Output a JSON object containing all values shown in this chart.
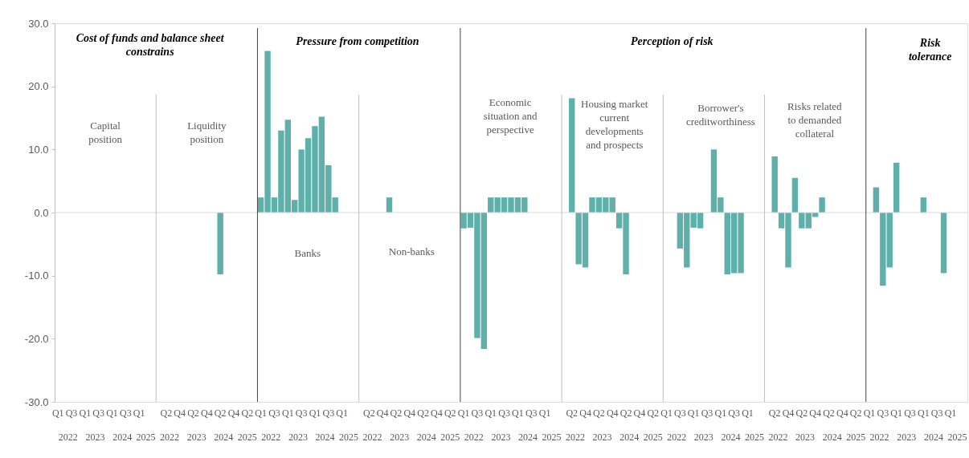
{
  "chart_data": {
    "type": "bar",
    "categories": [
      "Q1",
      null,
      "Q3",
      null,
      "Q1",
      null,
      "Q3",
      null,
      "Q1",
      null,
      "Q3",
      null,
      "Q1",
      null,
      null,
      null,
      "Q2",
      null,
      "Q4",
      null,
      "Q2",
      null,
      "Q4",
      null,
      "Q2",
      null,
      "Q4",
      null,
      "Q2",
      null,
      "Q1",
      null,
      "Q3",
      null,
      "Q1",
      null,
      "Q3",
      null,
      "Q1",
      null,
      "Q3",
      null,
      "Q1",
      null,
      null,
      null,
      "Q2",
      null,
      "Q4",
      null,
      "Q2",
      null,
      "Q4",
      null,
      "Q2",
      null,
      "Q4",
      null,
      "Q2",
      null,
      "Q1",
      null,
      "Q3",
      null,
      "Q1",
      null,
      "Q3",
      null,
      "Q1",
      null,
      "Q3",
      null,
      "Q1",
      null,
      null,
      null,
      "Q2",
      null,
      "Q4",
      null,
      "Q2",
      null,
      "Q4",
      null,
      "Q2",
      null,
      "Q4",
      null,
      "Q2",
      null,
      "Q1",
      null,
      "Q3",
      null,
      "Q1",
      null,
      "Q3",
      null,
      "Q1",
      null,
      "Q3",
      null,
      "Q1",
      null,
      null,
      null,
      "Q2",
      null,
      "Q4",
      null,
      "Q2",
      null,
      "Q4",
      null,
      "Q2",
      null,
      "Q4",
      null,
      "Q2",
      null,
      "Q1",
      null,
      "Q3",
      null,
      "Q1",
      null,
      "Q3",
      null,
      "Q1",
      null,
      "Q3",
      null,
      "Q1",
      null,
      null
    ],
    "series": [
      {
        "color": "#5fb0ab",
        "values": [
          0,
          0,
          0,
          0,
          0,
          0,
          0,
          0,
          0,
          0,
          0,
          0,
          0,
          0,
          null,
          0,
          0,
          0,
          0,
          0,
          0,
          0,
          0,
          0,
          -9.8,
          0,
          0,
          0,
          0,
          null,
          2.4,
          25.6,
          2.4,
          13.0,
          14.7,
          2.0,
          10.0,
          11.8,
          13.7,
          15.2,
          7.5,
          2.4,
          0,
          0,
          null,
          0,
          0,
          0,
          0,
          2.4,
          0,
          0,
          0,
          0,
          0,
          0,
          0,
          0,
          0,
          null,
          -2.5,
          -2.4,
          -19.9,
          -21.6,
          2.4,
          2.4,
          2.4,
          2.4,
          2.4,
          2.4,
          0,
          0,
          0,
          0,
          null,
          0,
          18.1,
          -8.2,
          -8.7,
          2.4,
          2.4,
          2.4,
          2.4,
          -2.5,
          -9.8,
          0,
          0,
          0,
          0,
          null,
          0,
          0,
          -5.7,
          -8.7,
          -2.4,
          -2.5,
          0,
          10.0,
          2.4,
          -9.8,
          -9.6,
          -9.6,
          0,
          0,
          null,
          0,
          8.9,
          -2.5,
          -8.7,
          5.5,
          -2.5,
          -2.5,
          -0.7,
          2.4,
          0,
          0,
          0,
          0,
          0,
          null,
          0,
          4.0,
          -11.6,
          -8.7,
          7.9,
          0,
          0,
          0,
          2.4,
          0,
          0,
          -9.6,
          0,
          0,
          null
        ]
      }
    ],
    "ylim": [
      -30,
      30
    ],
    "yticks": [
      {
        "value": -30,
        "label": "-30.0"
      },
      {
        "value": -20,
        "label": "-20.0"
      },
      {
        "value": -10,
        "label": "-10.0"
      },
      {
        "value": 0,
        "label": "0.0"
      },
      {
        "value": 10,
        "label": "10.0"
      },
      {
        "value": 20,
        "label": "20.0"
      },
      {
        "value": 30,
        "label": "30.0"
      }
    ],
    "ref_lines": [
      {
        "axis": "y",
        "value": 0,
        "color": "#d9d9d9"
      }
    ],
    "grid": false,
    "annotations": [
      "Cost of funds and balance sheet\nconstrains",
      "Pressure from competition",
      "Perception of risk",
      "Risk\ntolerance",
      "Capital\nposition",
      "Liquidity\nposition",
      "Banks",
      "Non-banks",
      "Economic\nsituation  and\nperspective",
      "Housing market\ncurrent\ndevelopments\nand prospects",
      "Borrower's\ncreditworthiness",
      "Risks related\nto demanded\ncollateral",
      "2022",
      "2023",
      "2024",
      "2025",
      "2022",
      "2023",
      "2024",
      "2025",
      "2022",
      "2023",
      "2024",
      "2025",
      "2022",
      "2023",
      "2024",
      "2025",
      "2022",
      "2023",
      "2024",
      "2025",
      "2022",
      "2023",
      "2024",
      "2025",
      "2022",
      "2023",
      "2024",
      "2025",
      "2022",
      "2023",
      "2024",
      "2025",
      "2022",
      "2023",
      "2024",
      "2025"
    ]
  }
}
